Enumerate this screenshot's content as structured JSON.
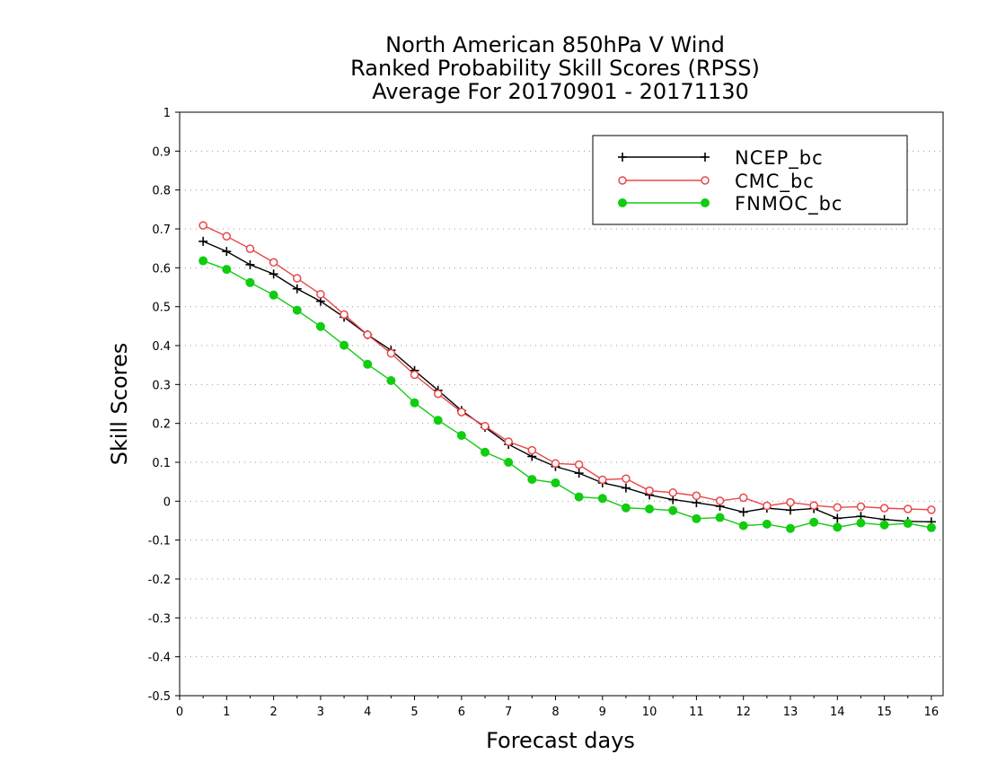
{
  "chart_data": {
    "type": "line",
    "title": [
      "North American 850hPa V Wind",
      "Ranked Probability Skill Scores (RPSS)",
      "Average For 20170901 - 20171130"
    ],
    "xlabel": "Forecast days",
    "ylabel": "Skill Scores",
    "xlim": [
      0,
      16.25
    ],
    "ylim": [
      -0.5,
      1
    ],
    "x_ticks": [
      0,
      1,
      2,
      3,
      4,
      5,
      6,
      7,
      8,
      9,
      10,
      11,
      12,
      13,
      14,
      15,
      16
    ],
    "y_ticks": [
      -0.5,
      -0.4,
      -0.3,
      -0.2,
      -0.1,
      0,
      0.1,
      0.2,
      0.3,
      0.4,
      0.5,
      0.6,
      0.7,
      0.8,
      0.9,
      1
    ],
    "y_tick_labels": [
      "-0.5",
      "-0.4",
      "-0.3",
      "-0.2",
      "-0.1",
      "0",
      "0.1",
      "0.2",
      "0.3",
      "0.4",
      "0.5",
      "0.6",
      "0.7",
      "0.8",
      "0.9",
      "1"
    ],
    "grid": "horizontal dotted",
    "legend_position": "top-right",
    "x": [
      0.5,
      1,
      1.5,
      2,
      2.5,
      3,
      3.5,
      4,
      4.5,
      5,
      5.5,
      6,
      6.5,
      7,
      7.5,
      8,
      8.5,
      9,
      9.5,
      10,
      10.5,
      11,
      11.5,
      12,
      12.5,
      13,
      13.5,
      14,
      14.5,
      15,
      15.5,
      16
    ],
    "series": [
      {
        "name": "NCEP_bc",
        "color": "#000000",
        "marker": "plus",
        "values": [
          0.668,
          0.642,
          0.608,
          0.584,
          0.546,
          0.514,
          0.473,
          0.428,
          0.388,
          0.336,
          0.285,
          0.233,
          0.19,
          0.146,
          0.115,
          0.089,
          0.072,
          0.047,
          0.034,
          0.016,
          0.004,
          -0.004,
          -0.013,
          -0.028,
          -0.018,
          -0.023,
          -0.019,
          -0.044,
          -0.039,
          -0.047,
          -0.052,
          -0.053
        ]
      },
      {
        "name": "CMC_bc",
        "color": "#e8474a",
        "marker": "open-circle",
        "values": [
          0.709,
          0.681,
          0.649,
          0.614,
          0.573,
          0.532,
          0.48,
          0.428,
          0.38,
          0.325,
          0.276,
          0.229,
          0.193,
          0.153,
          0.131,
          0.097,
          0.094,
          0.055,
          0.058,
          0.027,
          0.022,
          0.014,
          0.001,
          0.009,
          -0.012,
          -0.003,
          -0.011,
          -0.016,
          -0.014,
          -0.018,
          -0.02,
          -0.022
        ]
      },
      {
        "name": "FNMOC_bc",
        "color": "#11cc11",
        "marker": "filled-circle",
        "values": [
          0.618,
          0.596,
          0.562,
          0.53,
          0.491,
          0.449,
          0.401,
          0.352,
          0.31,
          0.253,
          0.208,
          0.169,
          0.126,
          0.1,
          0.056,
          0.047,
          0.011,
          0.007,
          -0.017,
          -0.02,
          -0.024,
          -0.045,
          -0.042,
          -0.063,
          -0.059,
          -0.07,
          -0.054,
          -0.067,
          -0.056,
          -0.061,
          -0.057,
          -0.068
        ]
      }
    ]
  }
}
